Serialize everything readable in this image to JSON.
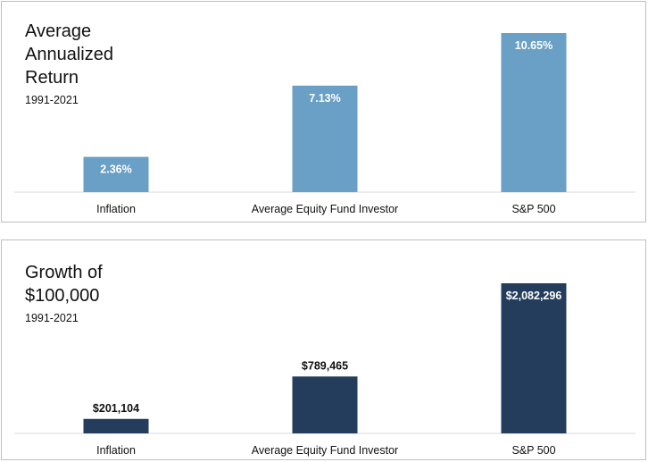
{
  "colors": {
    "panel1_bar": "#6a9fc6",
    "panel2_bar": "#243d5c",
    "axis": "#d9d9d9",
    "text": "#111111"
  },
  "chart_data": [
    {
      "type": "bar",
      "title": "Average\nAnnualized\nReturn",
      "subtitle": "1991-2021",
      "categories": [
        "Inflation",
        "Average Equity Fund Investor",
        "S&P 500"
      ],
      "values": [
        2.36,
        7.13,
        10.65
      ],
      "value_labels": [
        "2.36%",
        "7.13%",
        "10.65%"
      ],
      "label_position": "inside",
      "ylim": [
        0,
        10.65
      ],
      "grid": false,
      "legend": "none"
    },
    {
      "type": "bar",
      "title": "Growth of\n$100,000",
      "subtitle": "1991-2021",
      "categories": [
        "Inflation",
        "Average Equity Fund Investor",
        "S&P 500"
      ],
      "values": [
        201104,
        789465,
        2082296
      ],
      "value_labels": [
        "$201,104",
        "$789,465",
        "$2,082,296"
      ],
      "label_position": "mixed",
      "ylim": [
        0,
        2082296
      ],
      "grid": false,
      "legend": "none"
    }
  ]
}
